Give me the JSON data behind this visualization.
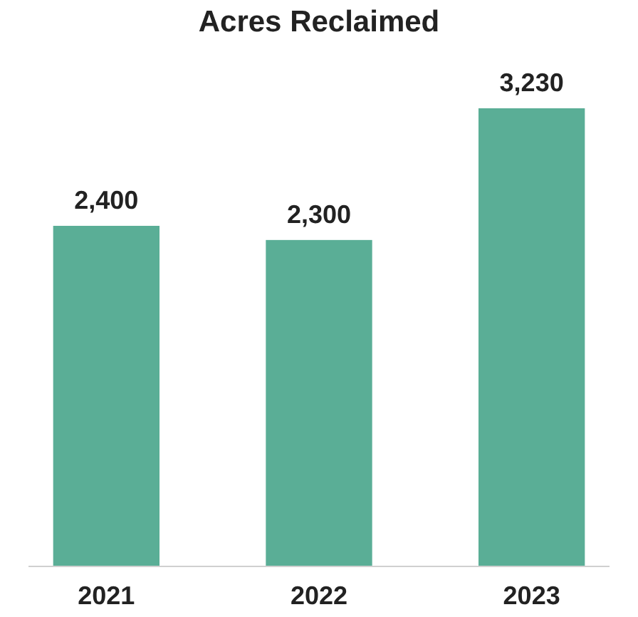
{
  "chart_data": {
    "type": "bar",
    "title": "Acres Reclaimed",
    "categories": [
      "2021",
      "2022",
      "2023"
    ],
    "values": [
      2400,
      2300,
      3230
    ],
    "value_labels": [
      "2,400",
      "2,300",
      "3,230"
    ],
    "color": "#5aae96"
  }
}
